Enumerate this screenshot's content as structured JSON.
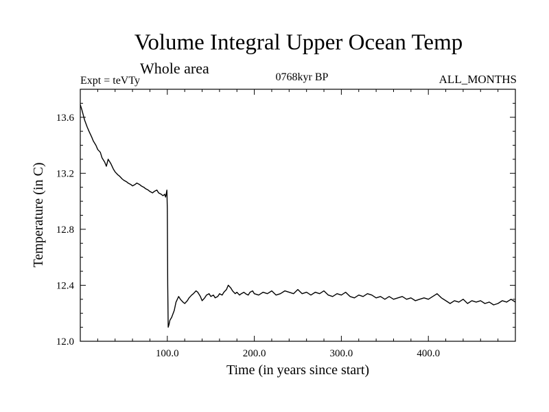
{
  "header": {
    "title": "Volume Integral Upper Ocean Temp",
    "subtitle": "Whole area",
    "expt_label": "Expt = teVTy",
    "period_label": "0768kyr BP",
    "months_label": "ALL_MONTHS"
  },
  "chart_data": {
    "type": "line",
    "title": "Volume Integral Upper Ocean Temp",
    "subtitle": "Whole area",
    "xlabel": "Time (in years since start)",
    "ylabel": "Temperature (in C)",
    "xlim": [
      0,
      500
    ],
    "ylim": [
      12.0,
      13.8
    ],
    "x_ticks": [
      100,
      200,
      300,
      400
    ],
    "x_tick_labels": [
      "100.0",
      "200.0",
      "300.0",
      "400.0"
    ],
    "y_ticks": [
      12.0,
      12.4,
      12.8,
      13.2,
      13.6
    ],
    "y_tick_labels": [
      "12.0",
      "12.4",
      "12.8",
      "13.2",
      "13.6"
    ],
    "grid": false,
    "color": "#000000",
    "series": [
      {
        "x": [
          0,
          2,
          5,
          8,
          10,
          13,
          15,
          18,
          20,
          23,
          25,
          28,
          30,
          32,
          35,
          38,
          40,
          43,
          45,
          48,
          50,
          53,
          55,
          58,
          60,
          63,
          65,
          68,
          70,
          73,
          75,
          78,
          80,
          83,
          85,
          88,
          90,
          93,
          95,
          97,
          98,
          99,
          99.5,
          100,
          100.5,
          101,
          102,
          103,
          105,
          108,
          110,
          113,
          115,
          118,
          120,
          123,
          125,
          128,
          130,
          133,
          135,
          138,
          140,
          143,
          145,
          148,
          150,
          153,
          155,
          158,
          160,
          163,
          165,
          168,
          170,
          173,
          175,
          178,
          180,
          183,
          185,
          188,
          190,
          193,
          195,
          198,
          200,
          205,
          210,
          215,
          220,
          225,
          230,
          235,
          240,
          245,
          250,
          255,
          260,
          265,
          270,
          275,
          280,
          285,
          290,
          295,
          300,
          305,
          310,
          315,
          320,
          325,
          330,
          335,
          340,
          345,
          350,
          355,
          360,
          365,
          370,
          375,
          380,
          385,
          390,
          395,
          400,
          405,
          410,
          415,
          420,
          425,
          430,
          435,
          440,
          445,
          450,
          455,
          460,
          465,
          470,
          475,
          480,
          485,
          490,
          495,
          500
        ],
        "y": [
          13.69,
          13.65,
          13.58,
          13.53,
          13.5,
          13.46,
          13.43,
          13.4,
          13.37,
          13.35,
          13.31,
          13.28,
          13.25,
          13.3,
          13.27,
          13.23,
          13.21,
          13.19,
          13.18,
          13.16,
          13.15,
          13.14,
          13.13,
          13.12,
          13.11,
          13.12,
          13.13,
          13.12,
          13.11,
          13.1,
          13.09,
          13.08,
          13.07,
          13.06,
          13.07,
          13.08,
          13.06,
          13.05,
          13.04,
          13.05,
          13.03,
          13.06,
          13.08,
          12.95,
          12.4,
          12.1,
          12.12,
          12.15,
          12.17,
          12.22,
          12.28,
          12.32,
          12.3,
          12.28,
          12.27,
          12.29,
          12.31,
          12.33,
          12.34,
          12.36,
          12.35,
          12.32,
          12.29,
          12.31,
          12.33,
          12.34,
          12.32,
          12.33,
          12.31,
          12.32,
          12.34,
          12.33,
          12.35,
          12.37,
          12.4,
          12.38,
          12.36,
          12.34,
          12.35,
          12.33,
          12.34,
          12.35,
          12.34,
          12.33,
          12.35,
          12.36,
          12.34,
          12.33,
          12.35,
          12.34,
          12.36,
          12.33,
          12.34,
          12.36,
          12.35,
          12.34,
          12.37,
          12.34,
          12.35,
          12.33,
          12.35,
          12.34,
          12.36,
          12.33,
          12.32,
          12.34,
          12.33,
          12.35,
          12.32,
          12.31,
          12.33,
          12.32,
          12.34,
          12.33,
          12.31,
          12.32,
          12.3,
          12.32,
          12.3,
          12.31,
          12.32,
          12.3,
          12.31,
          12.29,
          12.3,
          12.31,
          12.3,
          12.32,
          12.34,
          12.31,
          12.29,
          12.27,
          12.29,
          12.28,
          12.3,
          12.27,
          12.29,
          12.28,
          12.29,
          12.27,
          12.28,
          12.26,
          12.27,
          12.29,
          12.28,
          12.3,
          12.28
        ]
      }
    ]
  }
}
